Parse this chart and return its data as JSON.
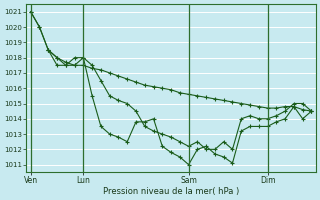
{
  "xlabel": "Pression niveau de la mer( hPa )",
  "bg_color": "#c8eaf0",
  "grid_color": "#aad4dc",
  "line_color": "#1a5c1a",
  "ylim": [
    1010.5,
    1021.5
  ],
  "yticks": [
    1011,
    1012,
    1013,
    1014,
    1015,
    1016,
    1017,
    1018,
    1019,
    1020,
    1021
  ],
  "xtick_labels": [
    "Ven",
    "Lun",
    "Sam",
    "Dim"
  ],
  "xtick_positions": [
    0,
    24,
    72,
    108
  ],
  "vline_positions": [
    0,
    24,
    72,
    108
  ],
  "xlim": [
    -2,
    130
  ],
  "line1_x": [
    0,
    4,
    8,
    12,
    16,
    20,
    24,
    28,
    32,
    36,
    40,
    44,
    48,
    52,
    56,
    60,
    64,
    68,
    72,
    76,
    80,
    84,
    88,
    92,
    96,
    100,
    104,
    108,
    112,
    116,
    120,
    124,
    128
  ],
  "line1_y": [
    1021.0,
    1020.0,
    1018.5,
    1018.0,
    1017.7,
    1017.5,
    1017.5,
    1017.3,
    1017.2,
    1017.0,
    1016.8,
    1016.6,
    1016.4,
    1016.2,
    1016.1,
    1016.0,
    1015.9,
    1015.7,
    1015.6,
    1015.5,
    1015.4,
    1015.3,
    1015.2,
    1015.1,
    1015.0,
    1014.9,
    1014.8,
    1014.7,
    1014.7,
    1014.8,
    1014.8,
    1014.6,
    1014.5
  ],
  "line2_x": [
    8,
    12,
    16,
    20,
    24,
    28,
    32,
    36,
    40,
    44,
    48,
    52,
    56,
    60,
    64,
    68,
    72,
    76,
    80,
    84,
    88,
    92,
    96,
    100,
    104,
    108,
    112,
    116,
    120,
    124,
    128
  ],
  "line2_y": [
    1018.5,
    1018.0,
    1017.5,
    1018.0,
    1018.0,
    1017.5,
    1016.5,
    1015.5,
    1015.2,
    1015.0,
    1014.5,
    1013.5,
    1013.2,
    1013.0,
    1012.8,
    1012.5,
    1012.2,
    1012.5,
    1012.0,
    1012.0,
    1012.5,
    1012.0,
    1014.0,
    1014.2,
    1014.0,
    1014.0,
    1014.2,
    1014.5,
    1015.0,
    1015.0,
    1014.5
  ],
  "line3_x": [
    0,
    4,
    8,
    12,
    16,
    20,
    24,
    28,
    32,
    36,
    40,
    44,
    48,
    52,
    56,
    60,
    64,
    68,
    72,
    76,
    80,
    84,
    88,
    92,
    96,
    100,
    104,
    108,
    112,
    116,
    120,
    124,
    128
  ],
  "line3_y": [
    1021.0,
    1020.0,
    1018.5,
    1017.5,
    1017.5,
    1017.5,
    1018.0,
    1015.5,
    1013.5,
    1013.0,
    1012.8,
    1012.5,
    1013.8,
    1013.8,
    1014.0,
    1012.2,
    1011.8,
    1011.5,
    1011.0,
    1012.0,
    1012.2,
    1011.7,
    1011.5,
    1011.1,
    1013.2,
    1013.5,
    1013.5,
    1013.5,
    1013.8,
    1014.0,
    1014.8,
    1014.0,
    1014.5
  ]
}
